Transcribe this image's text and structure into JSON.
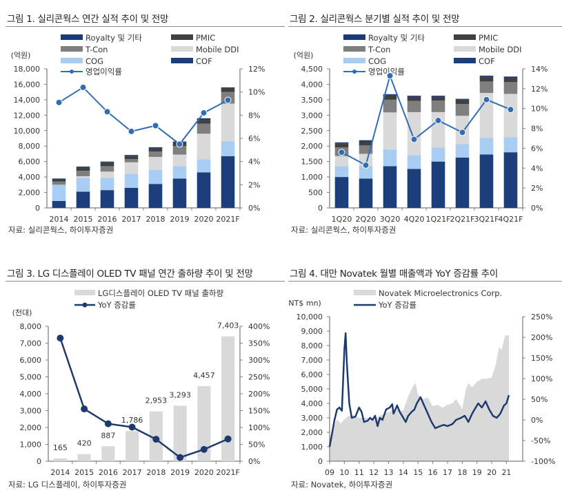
{
  "colors": {
    "royalty": "#1b3a78",
    "pmic": "#404040",
    "tcon": "#7f7f7f",
    "mobile_ddi": "#d9d9d9",
    "cog": "#a9cdf2",
    "cof": "#1c3f7c",
    "margin_line": "#2f6db5",
    "oled_bar": "#d9d9d9",
    "oled_line": "#1c3a6e",
    "novatek_area": "#d9d9d9",
    "novatek_line": "#1c3a6e",
    "axis": "#7f7f7f",
    "rule": "#8a8a8a"
  },
  "chart_data": [
    {
      "id": "fig1",
      "type": "bar",
      "stacked": true,
      "title": "그림 1. 실리콘웍스 연간 실적 추이 및 전망",
      "ylabel": "(억원)",
      "source": "자료: 실리콘웍스, 하이투자증권",
      "categories": [
        "2014",
        "2015",
        "2016",
        "2017",
        "2018",
        "2019",
        "2020",
        "2021F"
      ],
      "ylim": [
        0,
        18000
      ],
      "yticks": [
        "0",
        "2,000",
        "4,000",
        "6,000",
        "8,000",
        "10,000",
        "12,000",
        "14,000",
        "16,000",
        "18,000"
      ],
      "y2lim": [
        0,
        12
      ],
      "y2ticks": [
        "0%",
        "2%",
        "4%",
        "6%",
        "8%",
        "10%",
        "12%"
      ],
      "legend": [
        "Royalty 및 기타",
        "PMIC",
        "T-Con",
        "Mobile DDI",
        "COG",
        "COF",
        "영업이익률"
      ],
      "series": [
        {
          "name": "COF",
          "key": "cof",
          "values": [
            900,
            2100,
            2300,
            2600,
            3100,
            3800,
            4600,
            6700
          ]
        },
        {
          "name": "COG",
          "key": "cog",
          "values": [
            2100,
            1800,
            1600,
            1800,
            1800,
            1600,
            1700,
            1900
          ]
        },
        {
          "name": "Mobile DDI",
          "key": "mobile_ddi",
          "values": [
            0,
            200,
            800,
            1500,
            1700,
            1500,
            3300,
            4900
          ]
        },
        {
          "name": "T-Con",
          "key": "tcon",
          "values": [
            400,
            700,
            700,
            400,
            700,
            1100,
            1300,
            1500
          ]
        },
        {
          "name": "PMIC",
          "key": "pmic",
          "values": [
            300,
            400,
            500,
            400,
            400,
            500,
            500,
            500
          ]
        },
        {
          "name": "Royalty 및 기타",
          "key": "royalty",
          "values": [
            100,
            150,
            100,
            150,
            150,
            100,
            200,
            100
          ]
        }
      ],
      "line": {
        "name": "영업이익률",
        "axis": "right",
        "values": [
          9.1,
          10.4,
          8.3,
          6.6,
          7.1,
          5.5,
          8.2,
          9.3
        ]
      }
    },
    {
      "id": "fig2",
      "type": "bar",
      "stacked": true,
      "title": "그림 2. 실리콘웍스 분기별 실적 추이 및 전망",
      "ylabel": "(억원)",
      "source": "자료: 실리콘웍스, 하이투자증권",
      "categories": [
        "1Q20",
        "2Q20",
        "3Q20",
        "4Q20",
        "1Q21F",
        "2Q21F",
        "3Q21F",
        "4Q21F"
      ],
      "ylim": [
        0,
        4500
      ],
      "yticks": [
        "0",
        "500",
        "1,000",
        "1,500",
        "2,000",
        "2,500",
        "3,000",
        "3,500",
        "4,000",
        "4,500"
      ],
      "y2lim": [
        0,
        14
      ],
      "y2ticks": [
        "0%",
        "2%",
        "4%",
        "6%",
        "8%",
        "10%",
        "12%",
        "14%"
      ],
      "legend": [
        "Royalty 및 기타",
        "PMIC",
        "T-Con",
        "Mobile DDI",
        "COG",
        "COF",
        "영업이익률"
      ],
      "series": [
        {
          "name": "COF",
          "key": "cof",
          "values": [
            1000,
            950,
            1350,
            1260,
            1500,
            1630,
            1730,
            1800
          ]
        },
        {
          "name": "COG",
          "key": "cog",
          "values": [
            350,
            400,
            540,
            450,
            450,
            430,
            540,
            490
          ]
        },
        {
          "name": "Mobile DDI",
          "key": "mobile_ddi",
          "values": [
            330,
            400,
            1200,
            1390,
            1150,
            920,
            1450,
            1400
          ]
        },
        {
          "name": "T-Con",
          "key": "tcon",
          "values": [
            280,
            270,
            410,
            360,
            370,
            380,
            370,
            380
          ]
        },
        {
          "name": "PMIC",
          "key": "pmic",
          "values": [
            130,
            130,
            140,
            140,
            130,
            140,
            150,
            140
          ]
        },
        {
          "name": "Royalty 및 기타",
          "key": "royalty",
          "values": [
            30,
            40,
            40,
            30,
            30,
            30,
            40,
            40
          ]
        }
      ],
      "line": {
        "name": "영업이익률",
        "axis": "right",
        "values": [
          5.6,
          4.3,
          13.3,
          6.9,
          8.8,
          7.6,
          10.9,
          9.9
        ]
      }
    },
    {
      "id": "fig3",
      "type": "bar",
      "title": "그림 3. LG 디스플레이 OLED TV 패널 연간 출하량 추이 및 전망",
      "ylabel": "(천대)",
      "source": "자료: LG 디스플레이, 하이투자증권",
      "categories": [
        "2014",
        "2015",
        "2016",
        "2017",
        "2018",
        "2019",
        "2020",
        "2021F"
      ],
      "ylim": [
        0,
        8000
      ],
      "yticks": [
        "0",
        "1,000",
        "2,000",
        "3,000",
        "4,000",
        "5,000",
        "6,000",
        "7,000",
        "8,000"
      ],
      "y2lim": [
        0,
        400
      ],
      "y2ticks": [
        "0%",
        "50%",
        "100%",
        "150%",
        "200%",
        "250%",
        "300%",
        "350%",
        "400%"
      ],
      "legend": [
        "LG디스플레이 OLED TV 패널 출하량",
        "YoY 증감률"
      ],
      "series": [
        {
          "name": "LG디스플레이 OLED TV 패널 출하량",
          "key": "oled_bar",
          "values": [
            165,
            420,
            887,
            1786,
            2953,
            3293,
            4457,
            7403
          ],
          "labels": [
            "165",
            "420",
            "887",
            "1,786",
            "2,953",
            "3,293",
            "4,457",
            "7,403"
          ]
        }
      ],
      "line": {
        "name": "YoY 증감률",
        "axis": "right",
        "values": [
          365,
          155,
          111,
          101,
          65,
          11,
          35,
          66
        ]
      }
    },
    {
      "id": "fig4",
      "type": "area",
      "title": "그림 4. 대만 Novatek 월별 매출액과 YoY 증감률 추이",
      "ylabel": "(NT$ mn)",
      "source": "자료: Novatek, 하이투자증권",
      "xticks": [
        "09",
        "10",
        "11",
        "12",
        "13",
        "14",
        "15",
        "16",
        "17",
        "18",
        "19",
        "20",
        "21"
      ],
      "x_start": "2009-01",
      "x_frequency": "monthly",
      "ylim": [
        0,
        10000
      ],
      "yticks": [
        "0",
        "1,000",
        "2,000",
        "3,000",
        "4,000",
        "5,000",
        "6,000",
        "7,000",
        "8,000",
        "9,000",
        "10,000"
      ],
      "y2lim": [
        -100,
        250
      ],
      "y2ticks": [
        "-100%",
        "-50%",
        "0%",
        "50%",
        "100%",
        "150%",
        "200%",
        "250%"
      ],
      "legend": [
        "Novatek Microelectronics Corp.",
        "YoY 증감률"
      ],
      "revenue_keypoints": [
        [
          0,
          1500
        ],
        [
          3,
          2300
        ],
        [
          6,
          2900
        ],
        [
          9,
          2600
        ],
        [
          12,
          2900
        ],
        [
          15,
          3100
        ],
        [
          18,
          3200
        ],
        [
          24,
          3000
        ],
        [
          30,
          3000
        ],
        [
          36,
          2900
        ],
        [
          42,
          3200
        ],
        [
          48,
          3400
        ],
        [
          54,
          3600
        ],
        [
          60,
          3500
        ],
        [
          64,
          4500
        ],
        [
          68,
          5200
        ],
        [
          70,
          5400
        ],
        [
          72,
          4600
        ],
        [
          76,
          4300
        ],
        [
          80,
          4400
        ],
        [
          84,
          3800
        ],
        [
          88,
          3900
        ],
        [
          92,
          3700
        ],
        [
          96,
          3900
        ],
        [
          100,
          4000
        ],
        [
          103,
          4300
        ],
        [
          108,
          3600
        ],
        [
          111,
          5000
        ],
        [
          113,
          5400
        ],
        [
          116,
          5100
        ],
        [
          120,
          5500
        ],
        [
          124,
          5700
        ],
        [
          128,
          5700
        ],
        [
          132,
          5800
        ],
        [
          135,
          6600
        ],
        [
          138,
          7900
        ],
        [
          140,
          7700
        ],
        [
          143,
          8700
        ],
        [
          145,
          8700
        ]
      ],
      "yoy_keypoints": [
        [
          0,
          -65
        ],
        [
          4,
          0
        ],
        [
          6,
          25
        ],
        [
          8,
          30
        ],
        [
          10,
          22
        ],
        [
          12,
          170
        ],
        [
          13,
          210
        ],
        [
          14,
          140
        ],
        [
          16,
          40
        ],
        [
          18,
          5
        ],
        [
          21,
          8
        ],
        [
          24,
          30
        ],
        [
          26,
          20
        ],
        [
          28,
          -5
        ],
        [
          31,
          -2
        ],
        [
          33,
          5
        ],
        [
          35,
          0
        ],
        [
          37,
          10
        ],
        [
          39,
          -15
        ],
        [
          41,
          5
        ],
        [
          43,
          0
        ],
        [
          46,
          25
        ],
        [
          49,
          30
        ],
        [
          51,
          38
        ],
        [
          52,
          15
        ],
        [
          55,
          35
        ],
        [
          57,
          20
        ],
        [
          60,
          5
        ],
        [
          62,
          -5
        ],
        [
          64,
          10
        ],
        [
          67,
          20
        ],
        [
          69,
          25
        ],
        [
          71,
          40
        ],
        [
          74,
          55
        ],
        [
          77,
          35
        ],
        [
          80,
          15
        ],
        [
          83,
          -5
        ],
        [
          86,
          -20
        ],
        [
          90,
          -15
        ],
        [
          93,
          -12
        ],
        [
          96,
          -15
        ],
        [
          100,
          -10
        ],
        [
          103,
          0
        ],
        [
          107,
          5
        ],
        [
          110,
          10
        ],
        [
          113,
          -5
        ],
        [
          116,
          15
        ],
        [
          119,
          30
        ],
        [
          121,
          40
        ],
        [
          124,
          30
        ],
        [
          127,
          45
        ],
        [
          130,
          25
        ],
        [
          133,
          10
        ],
        [
          136,
          5
        ],
        [
          139,
          15
        ],
        [
          142,
          35
        ],
        [
          144,
          40
        ],
        [
          146,
          60
        ]
      ]
    }
  ]
}
